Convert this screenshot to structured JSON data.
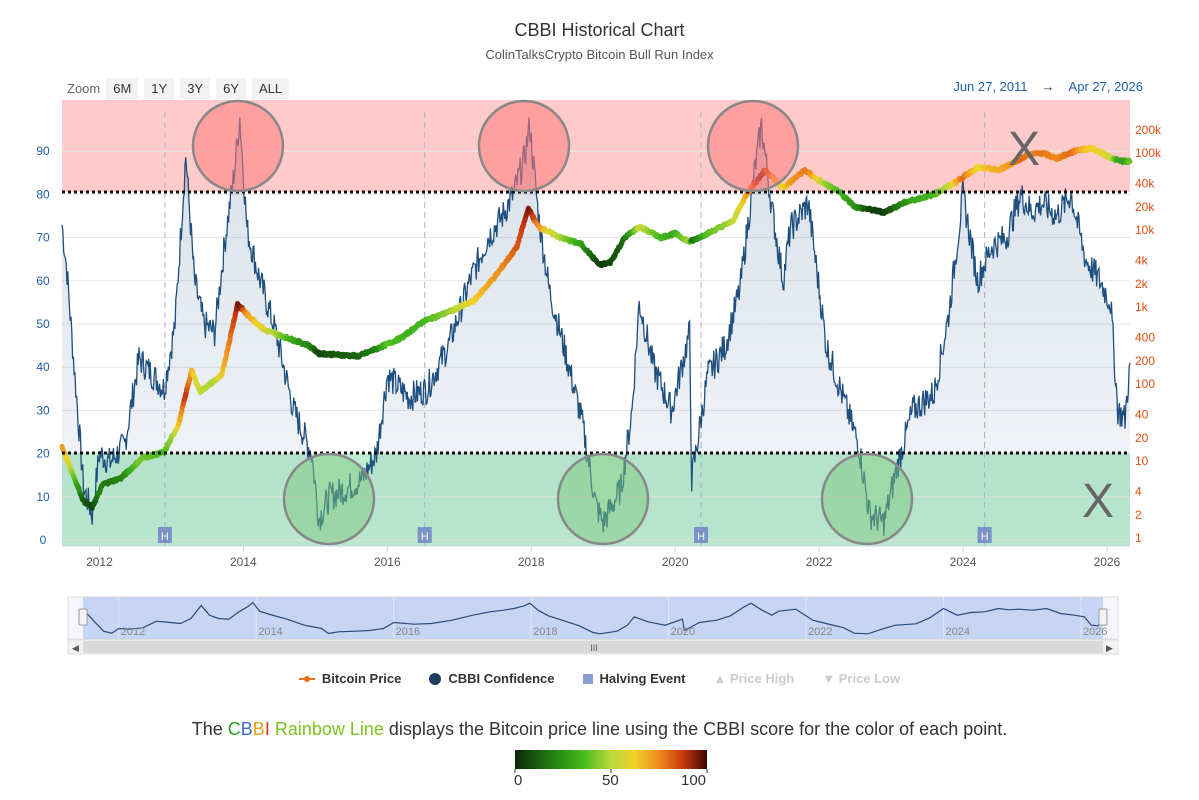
{
  "header": {
    "title": "CBBI Historical Chart",
    "subtitle": "ColinTalksCrypto Bitcoin Bull Run Index"
  },
  "zoom": {
    "label": "Zoom",
    "buttons": [
      "6M",
      "1Y",
      "3Y",
      "6Y",
      "ALL"
    ]
  },
  "range": {
    "from": "Jun 27, 2011",
    "arrow": "→",
    "to": "Apr 27, 2026"
  },
  "colors": {
    "top_zone": "#ffc9c9",
    "bottom_zone": "#bdebd0",
    "cbbi_line": "#1f4f7e",
    "price_axis": "#e04e0e",
    "cbbi_axis": "#1f5fa8"
  },
  "chart_data": {
    "type": "line",
    "title": "CBBI Historical Chart",
    "subtitle": "ColinTalksCrypto Bitcoin Bull Run Index",
    "x_range": [
      2011.48,
      2026.32
    ],
    "x_ticks": [
      "2012",
      "2014",
      "2016",
      "2018",
      "2020",
      "2022",
      "2024",
      "2026"
    ],
    "left_axis": {
      "label": "CBBI Confidence",
      "ylim": [
        0,
        100
      ],
      "ticks": [
        "0",
        "10",
        "20",
        "30",
        "40",
        "50",
        "60",
        "70",
        "80",
        "90"
      ]
    },
    "right_axis": {
      "label": "Bitcoin Price",
      "scale": "log",
      "ticks": [
        "1",
        "2",
        "4",
        "10",
        "20",
        "40",
        "100",
        "200",
        "400",
        "1k",
        "2k",
        "4k",
        "10k",
        "20k",
        "40k",
        "100k",
        "200k"
      ]
    },
    "thresholds": [
      80,
      20
    ],
    "halving_events": [
      2012.91,
      2016.52,
      2020.36,
      2024.3
    ],
    "halving_label": "H",
    "annotations": [
      "X",
      "X"
    ],
    "series": [
      {
        "name": "CBBI Confidence",
        "x": [
          2011.48,
          2011.55,
          2011.65,
          2011.78,
          2011.9,
          2012.0,
          2012.15,
          2012.35,
          2012.55,
          2012.75,
          2012.9,
          2013.05,
          2013.2,
          2013.32,
          2013.45,
          2013.6,
          2013.75,
          2013.88,
          2013.95,
          2014.05,
          2014.2,
          2014.45,
          2014.7,
          2014.95,
          2015.05,
          2015.2,
          2015.45,
          2015.65,
          2015.85,
          2016.0,
          2016.3,
          2016.55,
          2016.85,
          2017.15,
          2017.4,
          2017.6,
          2017.75,
          2017.9,
          2017.98,
          2018.1,
          2018.25,
          2018.45,
          2018.7,
          2018.9,
          2019.0,
          2019.25,
          2019.4,
          2019.5,
          2019.7,
          2019.95,
          2020.2,
          2020.23,
          2020.45,
          2020.7,
          2020.9,
          2021.1,
          2021.2,
          2021.35,
          2021.5,
          2021.6,
          2021.85,
          2022.1,
          2022.35,
          2022.55,
          2022.7,
          2022.9,
          2023.1,
          2023.3,
          2023.6,
          2023.8,
          2024.0,
          2024.2,
          2024.4,
          2024.6,
          2024.8,
          2024.95,
          2025.1,
          2025.3,
          2025.5,
          2025.7,
          2025.9,
          2026.05,
          2026.15,
          2026.25,
          2026.32
        ],
        "values": [
          73,
          62,
          40,
          12,
          6,
          20,
          18,
          22,
          42,
          38,
          35,
          50,
          89,
          60,
          50,
          48,
          70,
          86,
          98,
          72,
          62,
          48,
          30,
          20,
          5,
          10,
          12,
          14,
          20,
          38,
          33,
          35,
          45,
          60,
          70,
          75,
          80,
          88,
          96,
          75,
          58,
          45,
          28,
          8,
          4,
          12,
          30,
          55,
          40,
          30,
          48,
          14,
          38,
          45,
          58,
          85,
          96,
          76,
          60,
          72,
          78,
          45,
          32,
          22,
          6,
          4,
          18,
          30,
          34,
          52,
          80,
          60,
          68,
          70,
          80,
          76,
          78,
          75,
          80,
          65,
          60,
          55,
          30,
          28,
          41
        ]
      },
      {
        "name": "Bitcoin Price",
        "x": [
          2011.48,
          2011.6,
          2011.78,
          2011.9,
          2012.05,
          2012.3,
          2012.6,
          2012.9,
          2013.1,
          2013.28,
          2013.4,
          2013.7,
          2013.92,
          2014.05,
          2014.3,
          2014.6,
          2014.9,
          2015.05,
          2015.3,
          2015.6,
          2015.9,
          2016.2,
          2016.5,
          2016.9,
          2017.2,
          2017.5,
          2017.8,
          2017.96,
          2018.1,
          2018.4,
          2018.7,
          2018.95,
          2019.1,
          2019.3,
          2019.5,
          2019.8,
          2020.0,
          2020.2,
          2020.5,
          2020.8,
          2021.0,
          2021.25,
          2021.5,
          2021.8,
          2021.95,
          2022.3,
          2022.5,
          2022.9,
          2023.2,
          2023.6,
          2023.9,
          2024.2,
          2024.5,
          2024.9,
          2025.1,
          2025.3,
          2025.6,
          2025.8,
          2026.0,
          2026.15,
          2026.32
        ],
        "values": [
          15,
          8,
          3,
          2.5,
          5,
          6,
          11,
          13,
          30,
          150,
          80,
          130,
          1100,
          800,
          500,
          400,
          320,
          250,
          240,
          230,
          300,
          400,
          650,
          900,
          1200,
          2500,
          6000,
          19000,
          11000,
          8000,
          6500,
          3500,
          3800,
          8000,
          11000,
          8000,
          9000,
          7000,
          9500,
          13000,
          30000,
          60000,
          35000,
          60000,
          47000,
          30000,
          20000,
          17000,
          23000,
          29000,
          42000,
          65000,
          60000,
          95000,
          100000,
          85000,
          110000,
          115000,
          92000,
          80000,
          77000
        ],
        "color_scale": {
          "min_label": "0",
          "mid_label": "50",
          "max_label": "100"
        }
      },
      {
        "name": "Halving Event"
      },
      {
        "name": "Price High"
      },
      {
        "name": "Price Low"
      }
    ]
  },
  "navigator": {
    "x_ticks": [
      "2012",
      "2014",
      "2016",
      "2018",
      "2020",
      "2022",
      "2024",
      "2026"
    ],
    "scrollbar_grip": "III"
  },
  "legend": {
    "items": [
      {
        "label": "Bitcoin Price"
      },
      {
        "label": "CBBI Confidence"
      },
      {
        "label": "Halving Event"
      },
      {
        "label": "▲ Price High"
      },
      {
        "label": "▼ Price Low"
      }
    ]
  },
  "caption": {
    "before": "The ",
    "c1": "C",
    "c2": "B",
    "c3": "B",
    "c4": "I",
    "rainbow": " Rainbow Line",
    "after": " displays the Bitcoin price line using the CBBI score for the color of each point."
  },
  "colorbar": {
    "min": "0",
    "mid": "50",
    "max": "100"
  }
}
